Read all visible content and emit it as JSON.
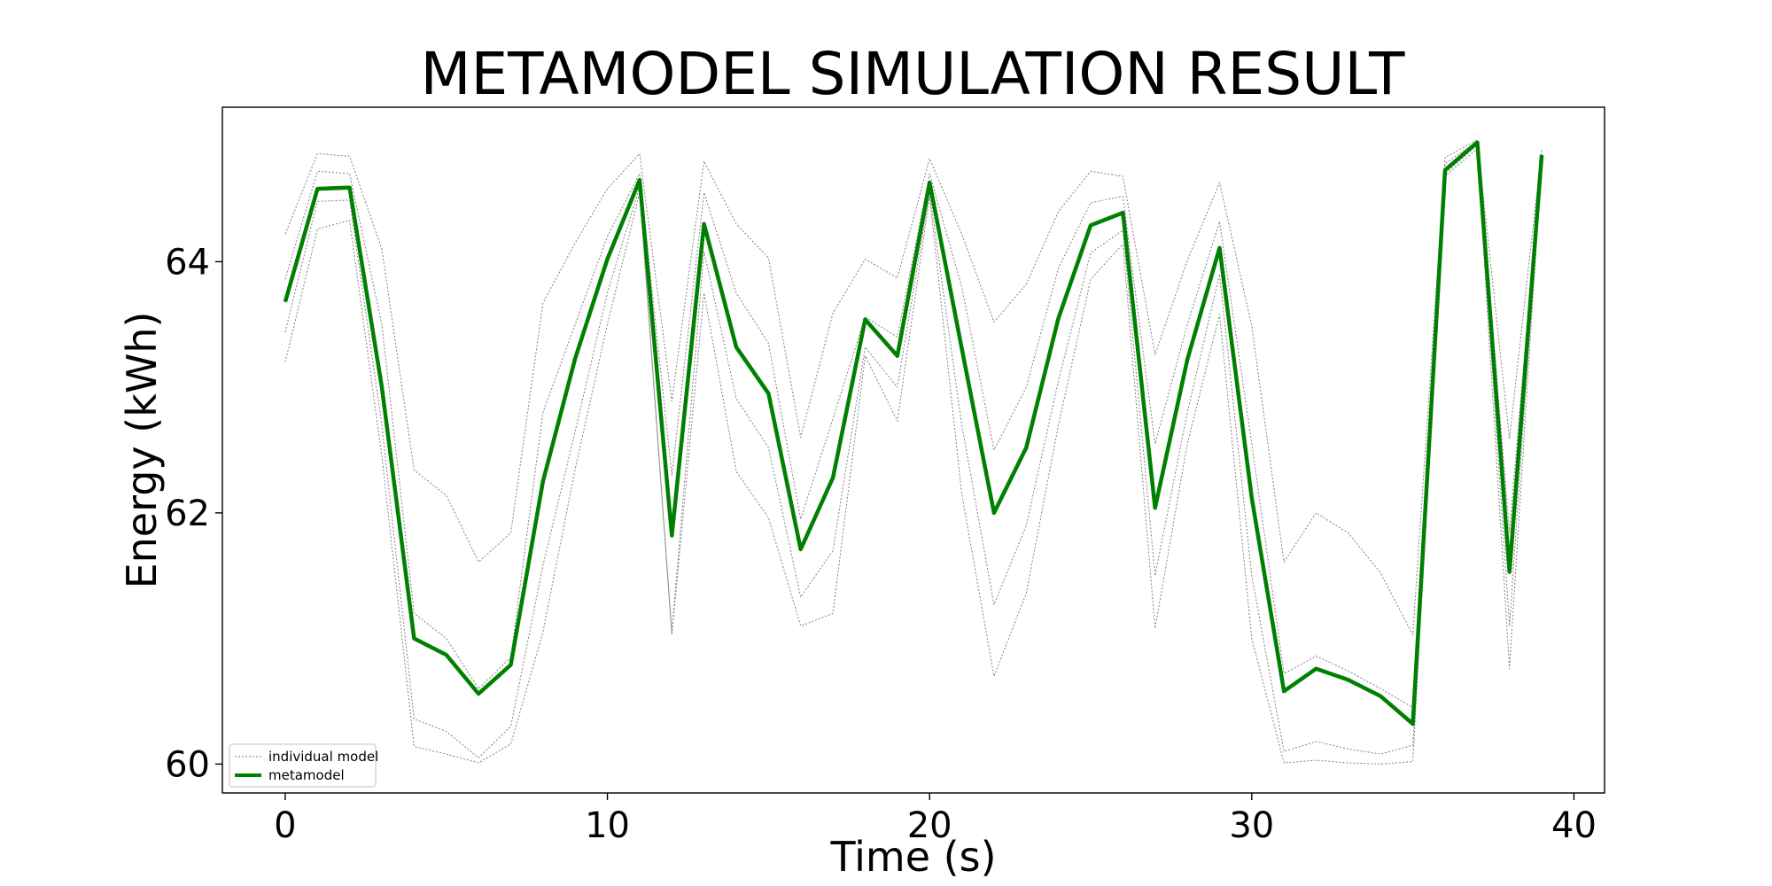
{
  "chart_data": {
    "type": "line",
    "title": "METAMODEL SIMULATION RESULT",
    "xlabel": "Time (s)",
    "ylabel": "Energy (kWh)",
    "xlim": [
      -1.95,
      40.95
    ],
    "ylim": [
      59.77,
      65.23
    ],
    "xticks": [
      0,
      10,
      20,
      30,
      40
    ],
    "yticks": [
      60,
      62,
      64
    ],
    "grid": false,
    "legend_position": "lower-left",
    "legend": [
      "individual model",
      "metamodel"
    ],
    "x": [
      0,
      1,
      2,
      3,
      4,
      5,
      6,
      7,
      8,
      9,
      10,
      11,
      12,
      13,
      14,
      15,
      16,
      17,
      18,
      19,
      20,
      21,
      22,
      23,
      24,
      25,
      26,
      27,
      28,
      29,
      30,
      31,
      32,
      33,
      34,
      35,
      36,
      37,
      38,
      39
    ],
    "series": [
      {
        "name": "metamodel",
        "style": "solid",
        "color": "#008000",
        "values": [
          63.68,
          64.58,
          64.59,
          63.0,
          61.0,
          60.87,
          60.56,
          60.79,
          62.25,
          63.23,
          64.02,
          64.65,
          61.82,
          64.3,
          63.32,
          62.95,
          61.71,
          62.28,
          63.54,
          63.25,
          64.63,
          63.31,
          62.0,
          62.52,
          63.55,
          64.29,
          64.39,
          62.04,
          63.22,
          64.11,
          62.12,
          60.58,
          60.76,
          60.67,
          60.54,
          60.32,
          64.73,
          64.95,
          61.53,
          64.85
        ]
      },
      {
        "name": "individual model",
        "style": "dotted",
        "color": "#808080",
        "values": [
          64.22,
          64.86,
          64.84,
          64.1,
          62.34,
          62.14,
          61.61,
          61.84,
          63.67,
          64.15,
          64.58,
          64.86,
          62.89,
          64.8,
          64.3,
          64.03,
          62.6,
          63.59,
          64.02,
          63.87,
          64.82,
          64.22,
          63.52,
          63.82,
          64.4,
          64.72,
          64.68,
          63.26,
          64.01,
          64.63,
          63.49,
          61.61,
          62.0,
          61.84,
          61.52,
          61.03,
          64.83,
          64.97,
          62.59,
          64.9
        ]
      },
      {
        "name": "individual model",
        "style": "dotted",
        "color": "#808080",
        "values": [
          63.86,
          64.72,
          64.7,
          63.5,
          61.2,
          61.0,
          60.6,
          60.85,
          62.8,
          63.5,
          64.2,
          64.7,
          62.3,
          64.55,
          63.75,
          63.35,
          61.95,
          62.75,
          63.56,
          63.4,
          64.7,
          63.8,
          62.5,
          63.0,
          63.95,
          64.47,
          64.52,
          62.55,
          63.5,
          64.32,
          62.55,
          60.72,
          60.86,
          60.74,
          60.6,
          60.45,
          64.78,
          64.96,
          61.85,
          64.88
        ]
      },
      {
        "name": "individual model",
        "style": "dotted",
        "color": "#808080",
        "values": [
          63.44,
          64.48,
          64.49,
          62.7,
          60.36,
          60.26,
          60.05,
          60.3,
          61.58,
          62.65,
          63.75,
          64.6,
          61.05,
          64.08,
          62.91,
          62.52,
          61.33,
          61.7,
          63.32,
          63.0,
          64.55,
          62.7,
          61.27,
          61.9,
          63.05,
          64.07,
          64.25,
          61.5,
          62.8,
          63.9,
          61.5,
          60.1,
          60.18,
          60.12,
          60.08,
          60.15,
          64.7,
          64.93,
          61.1,
          64.84
        ]
      },
      {
        "name": "individual model",
        "style": "dotted",
        "color": "#808080",
        "values": [
          63.2,
          64.26,
          64.33,
          62.45,
          60.14,
          60.08,
          60.01,
          60.16,
          61.05,
          62.35,
          63.5,
          64.55,
          61.03,
          63.75,
          62.33,
          61.96,
          61.1,
          61.2,
          63.25,
          62.73,
          64.52,
          62.15,
          60.7,
          61.36,
          62.7,
          63.86,
          64.14,
          61.08,
          62.55,
          63.58,
          61.0,
          60.01,
          60.03,
          60.01,
          60.0,
          60.02,
          64.68,
          64.9,
          60.76,
          64.82
        ]
      }
    ]
  }
}
